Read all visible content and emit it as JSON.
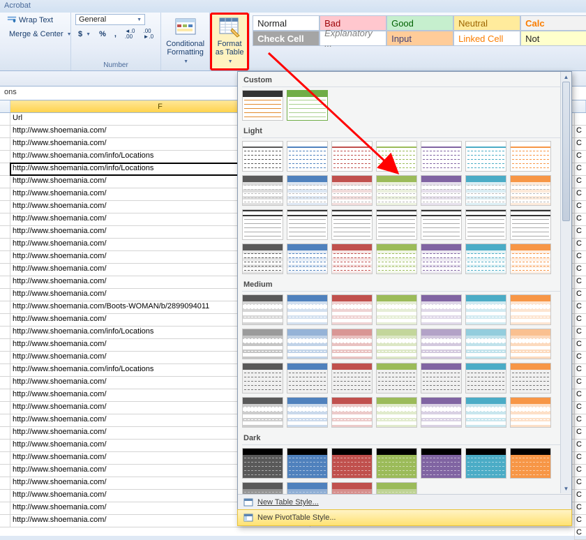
{
  "title": "Acrobat",
  "ribbon": {
    "alignment": {
      "wrap": "Wrap Text",
      "merge": "Merge & Center"
    },
    "number": {
      "group_label": "Number",
      "format": "General",
      "currency": "$",
      "percent": "%",
      "comma": ",",
      "inc": "←.0\n.00",
      "dec": ".00\n→.0"
    },
    "cond": {
      "l1": "Conditional",
      "l2": "Formatting"
    },
    "fmt": {
      "l1": "Format",
      "l2": "as Table"
    },
    "styles": {
      "normal": "Normal",
      "bad": "Bad",
      "good": "Good",
      "neutral": "Neutral",
      "calc": "Calc",
      "check": "Check Cell",
      "explan": "Explanatory ...",
      "input": "Input",
      "linked": "Linked Cell",
      "note": "Not"
    }
  },
  "formula_row_fragment": "ons",
  "col_letter": "F",
  "rows_header": "Url",
  "rows": [
    "http://www.shoemania.com/",
    "http://www.shoemania.com/",
    "http://www.shoemania.com/info/Locations",
    "http://www.shoemania.com/info/Locations",
    "http://www.shoemania.com/",
    "http://www.shoemania.com/",
    "http://www.shoemania.com/",
    "http://www.shoemania.com/",
    "http://www.shoemania.com/",
    "http://www.shoemania.com/",
    "http://www.shoemania.com/",
    "http://www.shoemania.com/",
    "http://www.shoemania.com/",
    "http://www.shoemania.com/",
    "http://www.shoemania.com/Boots-WOMAN/b/2899094011",
    "http://www.shoemania.com/",
    "http://www.shoemania.com/info/Locations",
    "http://www.shoemania.com/",
    "http://www.shoemania.com/",
    "http://www.shoemania.com/info/Locations",
    "http://www.shoemania.com/",
    "http://www.shoemania.com/",
    "http://www.shoemania.com/",
    "http://www.shoemania.com/",
    "http://www.shoemania.com/",
    "http://www.shoemania.com/",
    "http://www.shoemania.com/",
    "http://www.shoemania.com/",
    "http://www.shoemania.com/",
    "http://www.shoemania.com/",
    "http://www.shoemania.com/",
    "http://www.shoemania.com/"
  ],
  "active_row_index": 3,
  "gallery": {
    "categories": [
      "Custom",
      "Light",
      "Medium",
      "Dark"
    ],
    "new_table": "New Table Style...",
    "new_pivot": "New PivotTable Style...",
    "palette7": [
      "#595959",
      "#4f81bd",
      "#c0504d",
      "#9bbb59",
      "#8064a2",
      "#4bacc6",
      "#f79646"
    ],
    "light_rows": 4,
    "medium_rows": 4,
    "dark_rows": 2,
    "hover_target": {
      "row": 2,
      "col": 3,
      "section": "Light"
    }
  },
  "right_strip_char": "C",
  "annotation": {
    "arrow_color": "#ff0000",
    "from": [
      388,
      70
    ],
    "to": [
      565,
      250
    ]
  }
}
